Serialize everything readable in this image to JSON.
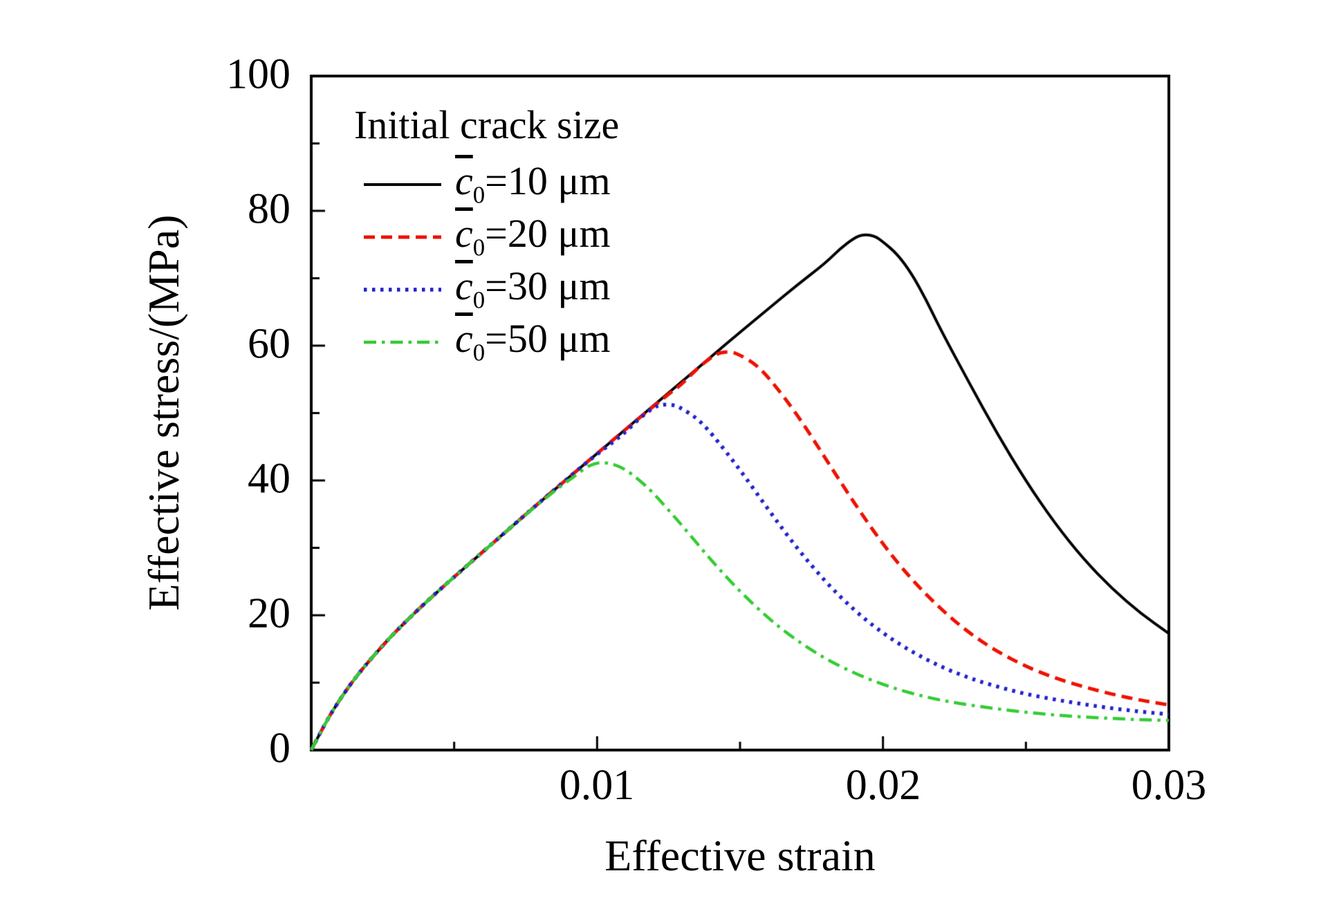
{
  "page": {
    "background": "#ffffff"
  },
  "chart_data": {
    "type": "line",
    "title": "",
    "xlabel": "Effective strain",
    "ylabel": "Effective stress/(MPa)",
    "xlim": [
      0,
      0.03
    ],
    "ylim": [
      0,
      100
    ],
    "grid": false,
    "frame": true,
    "xticks": {
      "major": [
        0.01,
        0.02,
        0.03
      ],
      "minor": [
        0.005,
        0.015,
        0.025
      ],
      "labels": [
        "0.01",
        "0.02",
        "0.03"
      ]
    },
    "yticks": {
      "major": [
        0,
        20,
        40,
        60,
        80,
        100
      ],
      "minor": [
        10,
        30,
        50,
        70,
        90
      ],
      "labels": [
        "0",
        "20",
        "40",
        "60",
        "80",
        "100"
      ]
    },
    "legend": {
      "title": "Initial crack size",
      "position": "top-left"
    },
    "series": [
      {
        "name": "c0-10um",
        "legend_parts": {
          "var": "c",
          "sub": "0",
          "rest": "=10 μm"
        },
        "color": "#000000",
        "style": "solid",
        "peak": {
          "x": 0.019,
          "y": 76.5
        },
        "points": [
          [
            0,
            0
          ],
          [
            0.0005,
            4.1
          ],
          [
            0.001,
            7.5
          ],
          [
            0.0015,
            10.5
          ],
          [
            0.002,
            13.1
          ],
          [
            0.0025,
            15.5
          ],
          [
            0.003,
            17.8
          ],
          [
            0.004,
            21.9
          ],
          [
            0.005,
            25.7
          ],
          [
            0.006,
            29.4
          ],
          [
            0.007,
            33.1
          ],
          [
            0.008,
            36.8
          ],
          [
            0.009,
            40.4
          ],
          [
            0.01,
            44.0
          ],
          [
            0.011,
            47.6
          ],
          [
            0.012,
            51.2
          ],
          [
            0.013,
            54.8
          ],
          [
            0.014,
            58.4
          ],
          [
            0.015,
            62.0
          ],
          [
            0.016,
            65.5
          ],
          [
            0.017,
            69.0
          ],
          [
            0.018,
            72.3
          ],
          [
            0.0185,
            74.4
          ],
          [
            0.019,
            76.0
          ],
          [
            0.0193,
            76.5
          ],
          [
            0.0197,
            76.3
          ],
          [
            0.02,
            75.4
          ],
          [
            0.0205,
            73.6
          ],
          [
            0.021,
            70.7
          ],
          [
            0.0215,
            66.9
          ],
          [
            0.022,
            62.5
          ],
          [
            0.023,
            54.6
          ],
          [
            0.024,
            46.9
          ],
          [
            0.025,
            39.9
          ],
          [
            0.026,
            33.7
          ],
          [
            0.027,
            28.4
          ],
          [
            0.028,
            24.0
          ],
          [
            0.029,
            20.3
          ],
          [
            0.03,
            17.3
          ]
        ]
      },
      {
        "name": "c0-20um",
        "legend_parts": {
          "var": "c",
          "sub": "0",
          "rest": "=20 μm"
        },
        "color": "#ee1100",
        "style": "dashed",
        "peak": {
          "x": 0.0143,
          "y": 59.1
        },
        "points": [
          [
            0,
            0
          ],
          [
            0.0005,
            4.1
          ],
          [
            0.001,
            7.5
          ],
          [
            0.0015,
            10.5
          ],
          [
            0.002,
            13.1
          ],
          [
            0.0025,
            15.5
          ],
          [
            0.003,
            17.8
          ],
          [
            0.004,
            21.9
          ],
          [
            0.005,
            25.7
          ],
          [
            0.006,
            29.4
          ],
          [
            0.007,
            33.1
          ],
          [
            0.008,
            36.8
          ],
          [
            0.009,
            40.4
          ],
          [
            0.01,
            44.0
          ],
          [
            0.011,
            47.6
          ],
          [
            0.012,
            51.1
          ],
          [
            0.0125,
            52.8
          ],
          [
            0.013,
            54.4
          ],
          [
            0.0135,
            56.6
          ],
          [
            0.014,
            58.3
          ],
          [
            0.0143,
            59.0
          ],
          [
            0.0147,
            59.1
          ],
          [
            0.015,
            58.6
          ],
          [
            0.0155,
            57.4
          ],
          [
            0.016,
            55.3
          ],
          [
            0.017,
            49.8
          ],
          [
            0.018,
            43.2
          ],
          [
            0.019,
            36.6
          ],
          [
            0.02,
            30.5
          ],
          [
            0.021,
            25.3
          ],
          [
            0.022,
            21.0
          ],
          [
            0.023,
            17.4
          ],
          [
            0.024,
            14.6
          ],
          [
            0.025,
            12.4
          ],
          [
            0.026,
            10.7
          ],
          [
            0.027,
            9.4
          ],
          [
            0.028,
            8.3
          ],
          [
            0.029,
            7.4
          ],
          [
            0.03,
            6.7
          ]
        ]
      },
      {
        "name": "c0-30um",
        "legend_parts": {
          "var": "c",
          "sub": "0",
          "rest": "=30 μm"
        },
        "color": "#2222cc",
        "style": "dotted",
        "peak": {
          "x": 0.0123,
          "y": 51.3
        },
        "points": [
          [
            0,
            0
          ],
          [
            0.0005,
            4.1
          ],
          [
            0.001,
            7.5
          ],
          [
            0.0015,
            10.5
          ],
          [
            0.002,
            13.1
          ],
          [
            0.0025,
            15.5
          ],
          [
            0.003,
            17.8
          ],
          [
            0.004,
            21.9
          ],
          [
            0.005,
            25.7
          ],
          [
            0.006,
            29.4
          ],
          [
            0.007,
            33.1
          ],
          [
            0.008,
            36.8
          ],
          [
            0.009,
            40.4
          ],
          [
            0.0095,
            42.2
          ],
          [
            0.01,
            43.9
          ],
          [
            0.0105,
            45.5
          ],
          [
            0.011,
            47.2
          ],
          [
            0.0115,
            49.3
          ],
          [
            0.012,
            50.9
          ],
          [
            0.0123,
            51.3
          ],
          [
            0.0127,
            51.2
          ],
          [
            0.013,
            50.6
          ],
          [
            0.0135,
            49.2
          ],
          [
            0.014,
            47.0
          ],
          [
            0.015,
            41.6
          ],
          [
            0.016,
            35.6
          ],
          [
            0.017,
            29.9
          ],
          [
            0.018,
            24.9
          ],
          [
            0.019,
            20.7
          ],
          [
            0.02,
            17.3
          ],
          [
            0.021,
            14.6
          ],
          [
            0.022,
            12.4
          ],
          [
            0.023,
            10.7
          ],
          [
            0.024,
            9.4
          ],
          [
            0.025,
            8.3
          ],
          [
            0.026,
            7.5
          ],
          [
            0.027,
            6.8
          ],
          [
            0.028,
            6.2
          ],
          [
            0.029,
            5.7
          ],
          [
            0.03,
            5.3
          ]
        ]
      },
      {
        "name": "c0-50um",
        "legend_parts": {
          "var": "c",
          "sub": "0",
          "rest": "=50 μm"
        },
        "color": "#33cc33",
        "style": "dashdot",
        "peak": {
          "x": 0.0101,
          "y": 42.7
        },
        "points": [
          [
            0,
            0
          ],
          [
            0.0005,
            4.1
          ],
          [
            0.001,
            7.5
          ],
          [
            0.0015,
            10.5
          ],
          [
            0.002,
            13.1
          ],
          [
            0.0025,
            15.5
          ],
          [
            0.003,
            17.8
          ],
          [
            0.004,
            21.9
          ],
          [
            0.005,
            25.7
          ],
          [
            0.006,
            29.4
          ],
          [
            0.007,
            33.1
          ],
          [
            0.008,
            36.7
          ],
          [
            0.0085,
            38.4
          ],
          [
            0.009,
            40.0
          ],
          [
            0.0093,
            40.9
          ],
          [
            0.0096,
            41.9
          ],
          [
            0.0099,
            42.5
          ],
          [
            0.0102,
            42.7
          ],
          [
            0.0106,
            42.4
          ],
          [
            0.011,
            41.6
          ],
          [
            0.0115,
            40.0
          ],
          [
            0.012,
            38.0
          ],
          [
            0.013,
            33.2
          ],
          [
            0.014,
            28.1
          ],
          [
            0.015,
            23.5
          ],
          [
            0.016,
            19.5
          ],
          [
            0.017,
            16.2
          ],
          [
            0.018,
            13.5
          ],
          [
            0.019,
            11.4
          ],
          [
            0.02,
            9.7
          ],
          [
            0.021,
            8.4
          ],
          [
            0.022,
            7.4
          ],
          [
            0.023,
            6.7
          ],
          [
            0.024,
            6.1
          ],
          [
            0.025,
            5.6
          ],
          [
            0.026,
            5.2
          ],
          [
            0.027,
            4.9
          ],
          [
            0.028,
            4.7
          ],
          [
            0.029,
            4.5
          ],
          [
            0.03,
            4.4
          ]
        ]
      }
    ]
  }
}
